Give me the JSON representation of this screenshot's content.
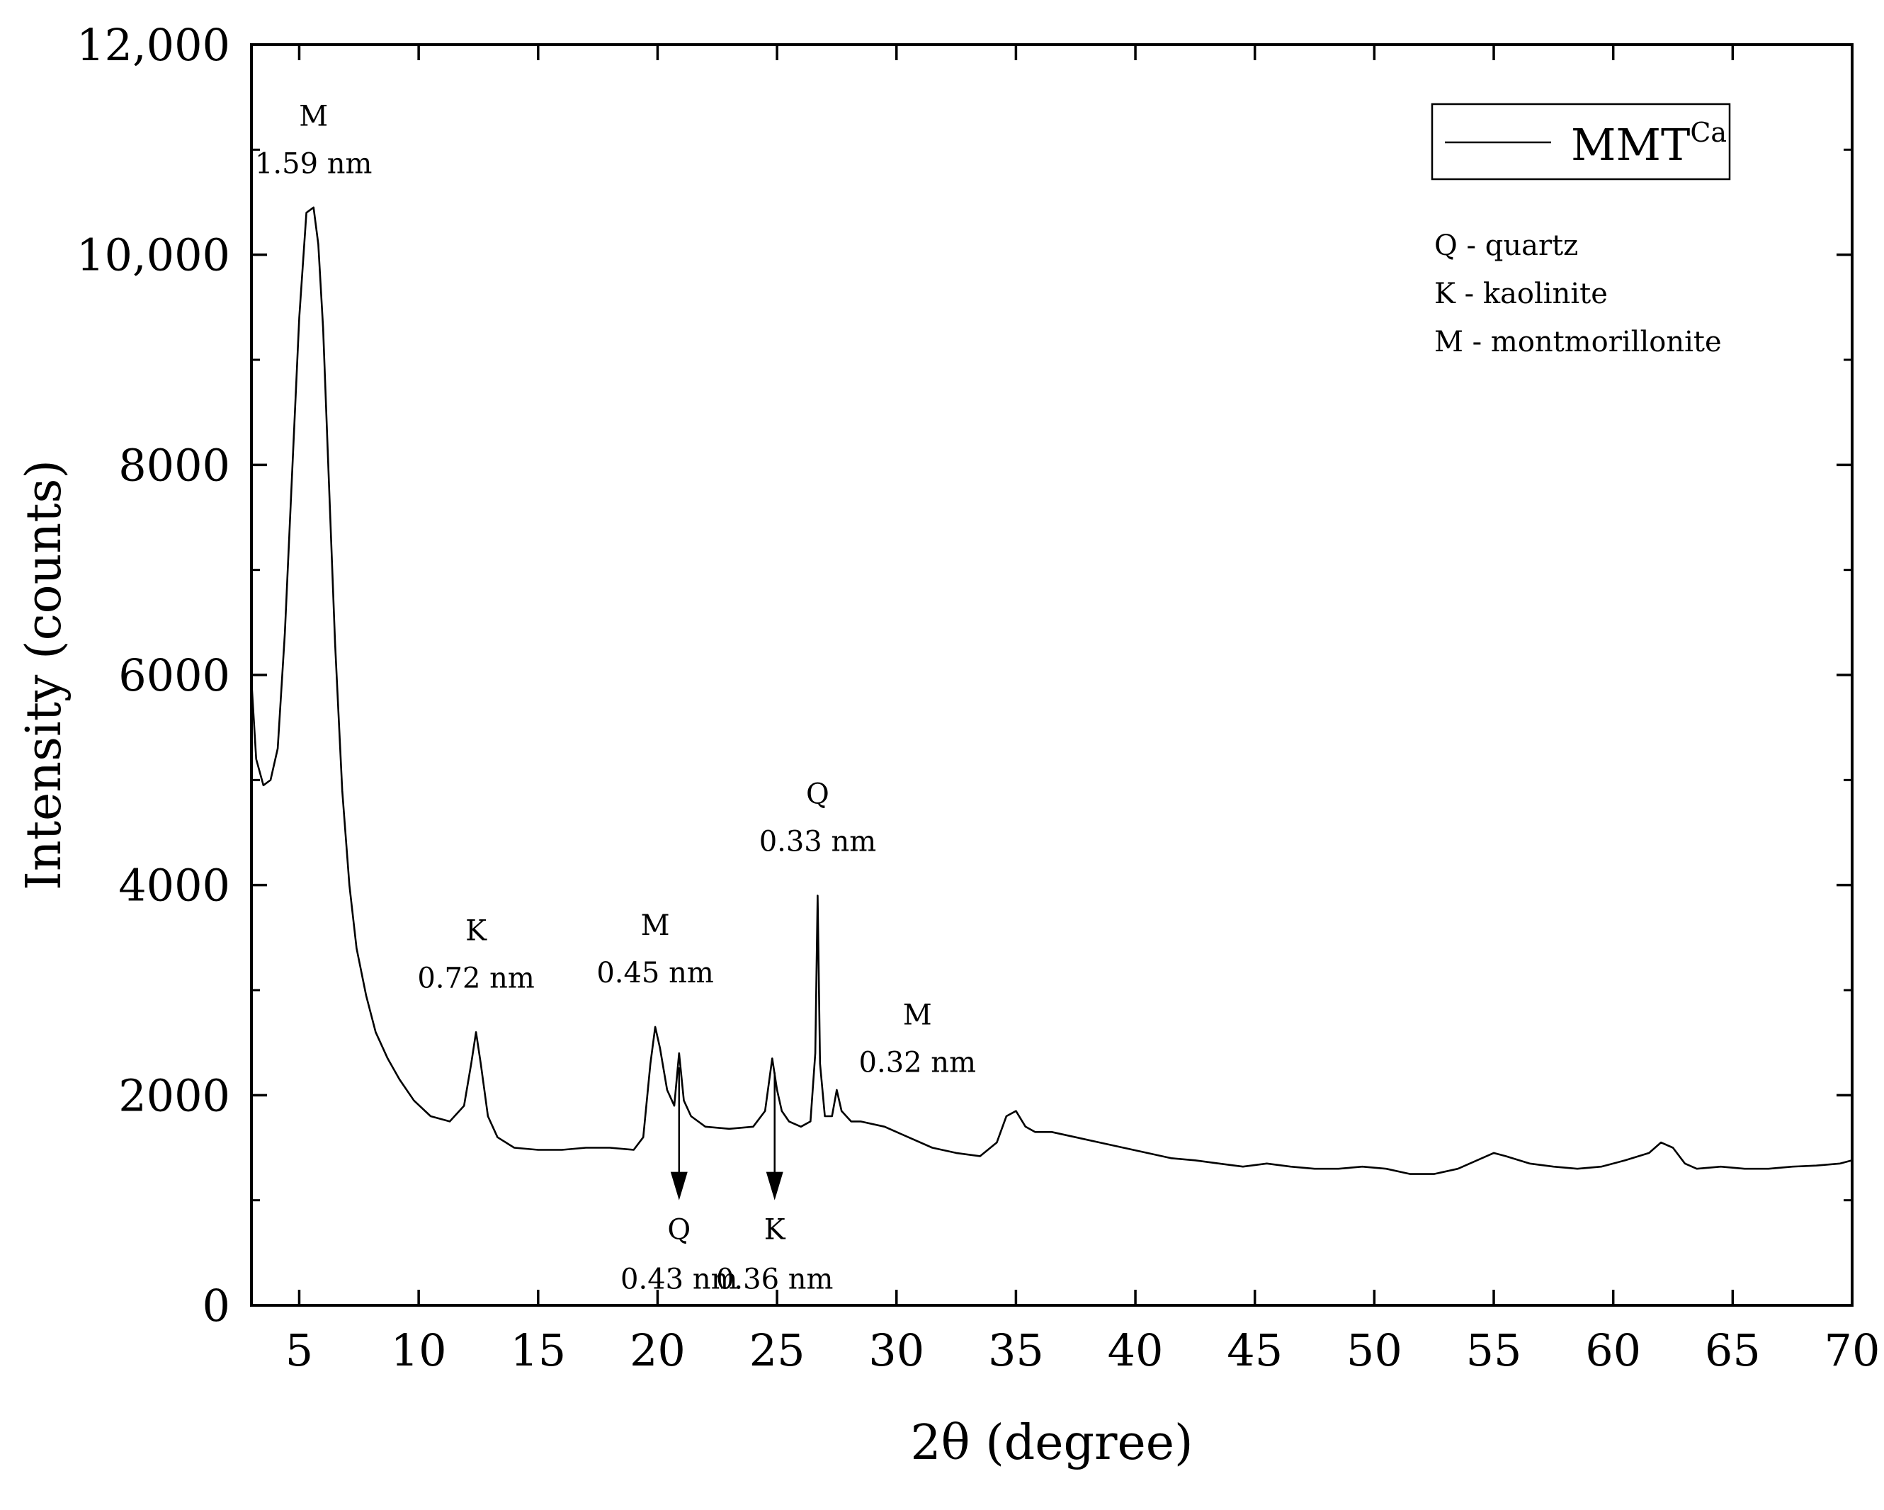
{
  "chart_data": {
    "type": "line",
    "title": "",
    "xlabel": "2θ (degree)",
    "ylabel": "Intensity (counts)",
    "xlim": [
      3,
      70
    ],
    "ylim": [
      0,
      12000
    ],
    "x_ticks": [
      5,
      10,
      15,
      20,
      25,
      30,
      35,
      40,
      45,
      50,
      55,
      60,
      65,
      70
    ],
    "x_tick_labels": [
      "5",
      "10",
      "15",
      "20",
      "25",
      "30",
      "35",
      "40",
      "45",
      "50",
      "55",
      "60",
      "65",
      "70"
    ],
    "y_ticks": [
      0,
      2000,
      4000,
      6000,
      8000,
      10000,
      12000
    ],
    "y_tick_labels": [
      "0",
      "2000",
      "4000",
      "6000",
      "8000",
      "10,000",
      "12,000"
    ],
    "series": [
      {
        "name": "MMT",
        "name_superscript": "Ca",
        "color": "#000000",
        "x": [
          3.0,
          3.2,
          3.5,
          3.8,
          4.1,
          4.4,
          4.7,
          5.0,
          5.3,
          5.6,
          5.8,
          6.0,
          6.2,
          6.5,
          6.8,
          7.1,
          7.4,
          7.8,
          8.2,
          8.7,
          9.2,
          9.8,
          10.5,
          11.3,
          11.9,
          12.2,
          12.4,
          12.6,
          12.9,
          13.3,
          14,
          15,
          16,
          17,
          18,
          19,
          19.4,
          19.7,
          19.9,
          20.1,
          20.4,
          20.7,
          20.9,
          21.1,
          21.4,
          22,
          23,
          24,
          24.5,
          24.8,
          25.0,
          25.2,
          25.5,
          26.0,
          26.4,
          26.6,
          26.7,
          26.8,
          27.0,
          27.3,
          27.5,
          27.7,
          27.9,
          28.1,
          28.5,
          29.5,
          30.5,
          31.5,
          32.5,
          33.5,
          34.2,
          34.6,
          35.0,
          35.4,
          35.8,
          36.5,
          37.5,
          38.5,
          39.5,
          40.5,
          41.5,
          42.5,
          43.5,
          44.5,
          45.5,
          46.5,
          47.5,
          48.5,
          49.5,
          50.5,
          51.5,
          52.5,
          53.5,
          54.5,
          55.0,
          55.5,
          56.5,
          57.5,
          58.5,
          59.5,
          60.5,
          61.5,
          62.0,
          62.5,
          63.0,
          63.5,
          64.5,
          65.5,
          66.5,
          67.5,
          68.5,
          69.5,
          70.0
        ],
        "y": [
          5950,
          5200,
          4950,
          5000,
          5300,
          6400,
          7900,
          9400,
          10400,
          10450,
          10100,
          9300,
          8100,
          6300,
          4900,
          4000,
          3400,
          2950,
          2600,
          2350,
          2150,
          1950,
          1800,
          1750,
          1900,
          2300,
          2600,
          2300,
          1800,
          1600,
          1500,
          1480,
          1480,
          1500,
          1500,
          1480,
          1600,
          2300,
          2650,
          2450,
          2050,
          1900,
          2400,
          1950,
          1800,
          1700,
          1680,
          1700,
          1850,
          2350,
          2050,
          1850,
          1750,
          1700,
          1750,
          2400,
          3900,
          2300,
          1800,
          1800,
          2050,
          1850,
          1800,
          1750,
          1750,
          1700,
          1600,
          1500,
          1450,
          1420,
          1550,
          1800,
          1850,
          1700,
          1650,
          1650,
          1600,
          1550,
          1500,
          1450,
          1400,
          1380,
          1350,
          1320,
          1350,
          1320,
          1300,
          1300,
          1320,
          1300,
          1250,
          1250,
          1300,
          1400,
          1450,
          1420,
          1350,
          1320,
          1300,
          1320,
          1380,
          1450,
          1550,
          1500,
          1350,
          1300,
          1320,
          1300,
          1300,
          1320,
          1330,
          1350,
          1380
        ]
      }
    ],
    "annotations": [
      {
        "letter": "M",
        "spacing": "1.59 nm",
        "x": 5.6,
        "y": 10500,
        "arrow": false
      },
      {
        "letter": "K",
        "spacing": "0.72 nm",
        "x": 12.4,
        "y": 2600,
        "arrow": false
      },
      {
        "letter": "M",
        "spacing": "0.45 nm",
        "x": 19.9,
        "y": 2650,
        "arrow": false
      },
      {
        "letter": "Q",
        "spacing": "0.43 nm",
        "x": 20.9,
        "y": 2400,
        "arrow": true
      },
      {
        "letter": "K",
        "spacing": "0.36 nm",
        "x": 24.9,
        "y": 2350,
        "arrow": true
      },
      {
        "letter": "Q",
        "spacing": "0.33 nm",
        "x": 26.7,
        "y": 3900,
        "arrow": false
      },
      {
        "letter": "M",
        "spacing": "0.32 nm",
        "x": 28.8,
        "y": 2000,
        "arrow": false
      }
    ],
    "legend_position": "top-right",
    "legend": {
      "label": "MMT",
      "superscript": "Ca"
    },
    "key": [
      "Q - quartz",
      "K - kaolinite",
      "M - montmorillonite"
    ]
  }
}
